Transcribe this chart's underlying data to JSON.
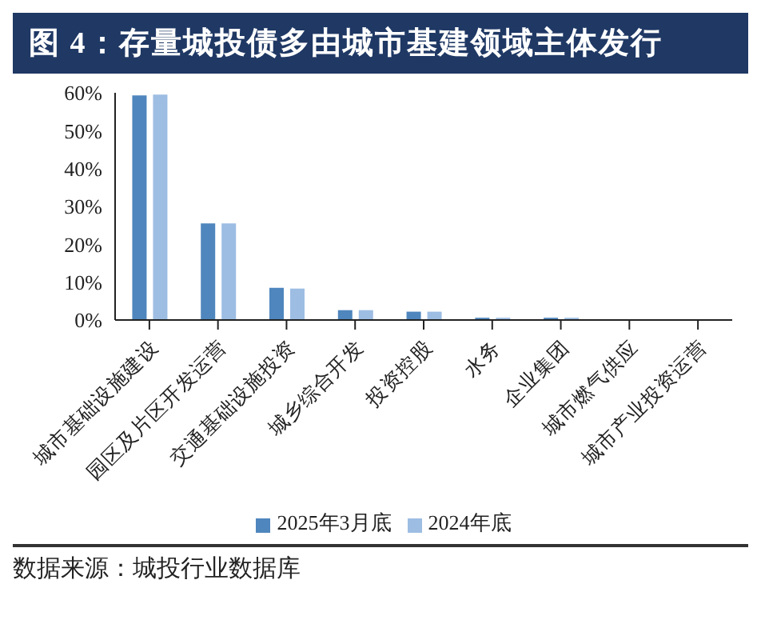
{
  "chart_data": {
    "type": "bar",
    "title": "图 4：存量城投债多由城市基建领域主体发行",
    "categories": [
      "城市基础设施建设",
      "园区及片区开发运营",
      "交通基础设施投资",
      "城乡综合开发",
      "投资控股",
      "水务",
      "企业集团",
      "城市燃气供应",
      "城市产业投资运营"
    ],
    "series": [
      {
        "name": "2025年3月底",
        "color": "#4f86bd",
        "values": [
          59.3,
          25.5,
          8.5,
          2.6,
          2.2,
          0.6,
          0.6,
          null,
          null
        ]
      },
      {
        "name": "2024年底",
        "color": "#9dbde3",
        "values": [
          59.5,
          25.5,
          8.3,
          2.6,
          2.2,
          0.6,
          0.6,
          null,
          null
        ]
      }
    ],
    "ylim": [
      0,
      60
    ],
    "yticks": [
      {
        "value": 0,
        "label": "0%"
      },
      {
        "value": 10,
        "label": "10%"
      },
      {
        "value": 20,
        "label": "20%"
      },
      {
        "value": 30,
        "label": "30%"
      },
      {
        "value": 40,
        "label": "40%"
      },
      {
        "value": 50,
        "label": "50%"
      },
      {
        "value": 60,
        "label": "60%"
      }
    ],
    "grid": false,
    "legend": "bottom",
    "annotations": [
      "数据来源：城投行业数据库"
    ]
  }
}
